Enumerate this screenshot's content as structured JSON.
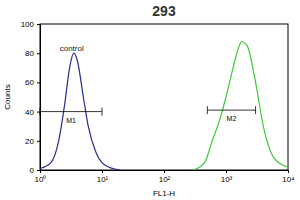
{
  "chart_data": {
    "type": "line",
    "title": "293",
    "x_label": "FL1-H",
    "y_label": "Counts",
    "log": "x",
    "xlim": [
      1,
      10000
    ],
    "xticks": [
      {
        "value": 1,
        "label": "10⁰"
      },
      {
        "value": 10,
        "label": "10¹"
      },
      {
        "value": 100,
        "label": "10²"
      },
      {
        "value": 1000,
        "label": "10³"
      },
      {
        "value": 10000,
        "label": "10⁴"
      }
    ],
    "ylim": [
      0,
      100
    ],
    "yticks": [
      0,
      20,
      40,
      60,
      80,
      100
    ],
    "series": [
      {
        "name": "control",
        "color": "#262d8c",
        "x": [
          1,
          1.5,
          2,
          2.5,
          3,
          3.5,
          4,
          5,
          6,
          8,
          10,
          15,
          20
        ],
        "values": [
          1,
          5,
          20,
          45,
          70,
          80,
          75,
          50,
          30,
          12,
          5,
          1,
          0
        ]
      },
      {
        "color": "#3cc83c",
        "x": [
          300,
          450,
          600,
          800,
          1000,
          1300,
          1600,
          1800,
          2200,
          3000,
          4000,
          6000,
          10000
        ],
        "values": [
          0,
          5,
          20,
          35,
          50,
          70,
          84,
          88,
          85,
          60,
          30,
          8,
          2
        ]
      }
    ],
    "annotations": [
      {
        "label": "M1",
        "x": [
          1,
          10
        ],
        "y": 40
      },
      {
        "label": "M2",
        "x": [
          500,
          3000
        ],
        "y": 41
      }
    ]
  }
}
